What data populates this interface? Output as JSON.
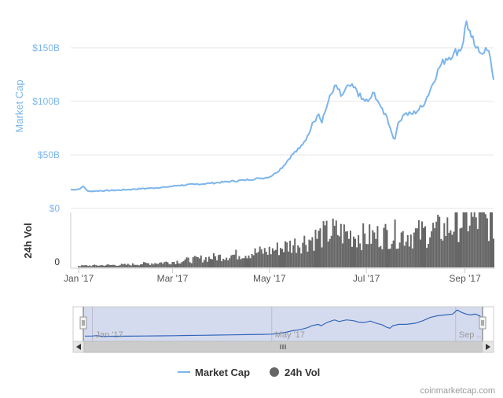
{
  "chart_data": {
    "type": "line",
    "title": "",
    "ylabel": "Market Cap",
    "ylim": [
      0,
      180
    ],
    "yunit": "B",
    "y_ticks": [
      {
        "value": 0,
        "label": "$0"
      },
      {
        "value": 50,
        "label": "$50B"
      },
      {
        "value": 100,
        "label": "$100B"
      },
      {
        "value": 150,
        "label": "$150B"
      }
    ],
    "x_range": [
      "2016-12-27",
      "2017-09-19"
    ],
    "x_ticks": [
      {
        "date": "2017-01-01",
        "label": "Jan '17"
      },
      {
        "date": "2017-03-01",
        "label": "Mar '17"
      },
      {
        "date": "2017-05-01",
        "label": "May '17"
      },
      {
        "date": "2017-07-01",
        "label": "Jul '17"
      },
      {
        "date": "2017-09-01",
        "label": "Sep '17"
      }
    ],
    "series": [
      {
        "name": "Market Cap",
        "color": "#7cb5ec",
        "points": [
          [
            "2016-12-27",
            17.5
          ],
          [
            "2017-01-01",
            18.0
          ],
          [
            "2017-01-04",
            20.5
          ],
          [
            "2017-01-07",
            16.0
          ],
          [
            "2017-01-15",
            16.5
          ],
          [
            "2017-01-25",
            17.0
          ],
          [
            "2017-02-05",
            18.0
          ],
          [
            "2017-02-15",
            19.0
          ],
          [
            "2017-02-25",
            20.0
          ],
          [
            "2017-03-05",
            21.5
          ],
          [
            "2017-03-15",
            22.5
          ],
          [
            "2017-03-25",
            23.5
          ],
          [
            "2017-04-05",
            25.0
          ],
          [
            "2017-04-15",
            26.5
          ],
          [
            "2017-04-25",
            28.0
          ],
          [
            "2017-05-01",
            29.5
          ],
          [
            "2017-05-05",
            33.0
          ],
          [
            "2017-05-10",
            40.0
          ],
          [
            "2017-05-15",
            50.0
          ],
          [
            "2017-05-20",
            56.0
          ],
          [
            "2017-05-25",
            68.0
          ],
          [
            "2017-05-28",
            80.0
          ],
          [
            "2017-06-01",
            88.0
          ],
          [
            "2017-06-03",
            80.0
          ],
          [
            "2017-06-07",
            100.0
          ],
          [
            "2017-06-12",
            115.0
          ],
          [
            "2017-06-15",
            105.0
          ],
          [
            "2017-06-20",
            115.0
          ],
          [
            "2017-06-25",
            110.0
          ],
          [
            "2017-06-28",
            102.0
          ],
          [
            "2017-07-02",
            100.0
          ],
          [
            "2017-07-06",
            108.0
          ],
          [
            "2017-07-10",
            95.0
          ],
          [
            "2017-07-14",
            85.0
          ],
          [
            "2017-07-17",
            70.0
          ],
          [
            "2017-07-19",
            65.0
          ],
          [
            "2017-07-21",
            80.0
          ],
          [
            "2017-07-25",
            88.0
          ],
          [
            "2017-07-30",
            88.0
          ],
          [
            "2017-08-05",
            95.0
          ],
          [
            "2017-08-10",
            110.0
          ],
          [
            "2017-08-15",
            130.0
          ],
          [
            "2017-08-20",
            140.0
          ],
          [
            "2017-08-25",
            145.0
          ],
          [
            "2017-08-30",
            150.0
          ],
          [
            "2017-09-02",
            175.0
          ],
          [
            "2017-09-05",
            160.0
          ],
          [
            "2017-09-08",
            150.0
          ],
          [
            "2017-09-11",
            145.0
          ],
          [
            "2017-09-14",
            150.0
          ],
          [
            "2017-09-17",
            140.0
          ],
          [
            "2017-09-19",
            120.0
          ]
        ]
      },
      {
        "name": "24h Vol",
        "color": "#666666",
        "ylabel": "24h Vol",
        "y_tick_label": "0",
        "points": [
          [
            "2017-01-01",
            0.3
          ],
          [
            "2017-02-01",
            0.5
          ],
          [
            "2017-03-01",
            1.0
          ],
          [
            "2017-04-01",
            2.0
          ],
          [
            "2017-05-01",
            3.0
          ],
          [
            "2017-05-20",
            4.5
          ],
          [
            "2017-06-10",
            6.5
          ],
          [
            "2017-07-01",
            5.5
          ],
          [
            "2017-07-15",
            6.0
          ],
          [
            "2017-08-01",
            6.0
          ],
          [
            "2017-08-20",
            7.0
          ],
          [
            "2017-09-01",
            9.0
          ],
          [
            "2017-09-19",
            8.0
          ]
        ]
      }
    ],
    "navigator": {
      "labels": [
        "Jan '17",
        "May '17",
        "Sep ..."
      ]
    },
    "legend": {
      "placement": "bottom",
      "items": [
        {
          "label": "Market Cap",
          "symbol": "line",
          "color": "#7cb5ec"
        },
        {
          "label": "24h Vol",
          "symbol": "circle",
          "color": "#666666"
        }
      ]
    },
    "credit": "coinmarketcap.com"
  }
}
